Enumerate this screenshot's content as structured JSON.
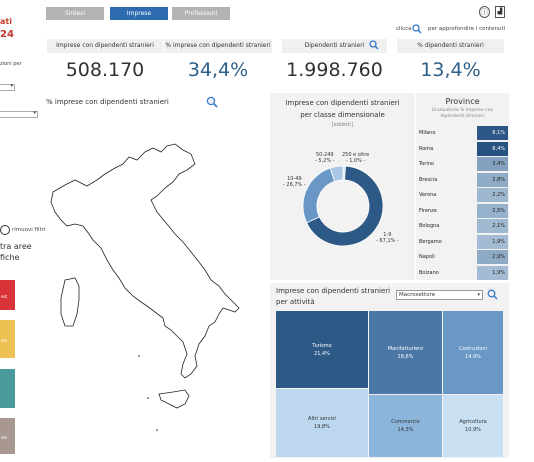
{
  "left": {
    "title_frag1": "ati",
    "title_frag2": "24",
    "filter_hint": "zioni per",
    "remove_filters": "rimuovi filtri",
    "areas_title1": "tra aree",
    "areas_title2": "fiche",
    "swatches": [
      {
        "label": "est",
        "color": "#d9343a"
      },
      {
        "label": "est",
        "color": "#eec153"
      },
      {
        "label": "",
        "color": "#4a9b9b"
      },
      {
        "label": "ole",
        "color": "#a99791"
      }
    ]
  },
  "nav": {
    "tabs": [
      {
        "label": "Sintesi",
        "active": false
      },
      {
        "label": "Imprese",
        "active": true
      },
      {
        "label": "Professioni",
        "active": false
      }
    ],
    "hint_pre": "clicca",
    "hint_post": "per approfondire i contenuti"
  },
  "kpis": [
    {
      "label": "Imprese con dipendenti stranieri",
      "value": "508.170",
      "color": "#333333"
    },
    {
      "label": "% imprese con dipendenti stranieri",
      "value": "34,4%",
      "color": "#2c5f8a"
    },
    {
      "label": "Dipendenti stranieri",
      "value": "1.998.760",
      "color": "#333333"
    },
    {
      "label": "% dipendenti stranieri",
      "value": "13,4%",
      "color": "#2c5f8a"
    }
  ],
  "map": {
    "title": "% imprese con dipendenti stranieri"
  },
  "donut": {
    "title1": "Imprese con dipendenti stranieri",
    "title2": "per classe dimensionale",
    "subtitle": "[addetti]",
    "labels": [
      {
        "name": "50-249",
        "pct": "- 5,2% -"
      },
      {
        "name": "250 e oltre",
        "pct": "- 1,0% -"
      },
      {
        "name": "10-49",
        "pct": "- 26,7% -"
      },
      {
        "name": "1-9",
        "pct": "- 67,1% -"
      }
    ]
  },
  "province": {
    "title": "Province",
    "subtitle1": "Graduatoria % imprese con",
    "subtitle2": "dipendenti stranieri",
    "rows": [
      {
        "name": "Milano",
        "value": "8,1%",
        "v": 8.1
      },
      {
        "name": "Roma",
        "value": "8,4%",
        "v": 8.4
      },
      {
        "name": "Torino",
        "value": "3,4%",
        "v": 3.4
      },
      {
        "name": "Brescia",
        "value": "2,8%",
        "v": 2.8
      },
      {
        "name": "Verona",
        "value": "2,2%",
        "v": 2.2
      },
      {
        "name": "Firenze",
        "value": "2,5%",
        "v": 2.5
      },
      {
        "name": "Bologna",
        "value": "2,1%",
        "v": 2.1
      },
      {
        "name": "Bergamo",
        "value": "1,9%",
        "v": 1.9
      },
      {
        "name": "Napoli",
        "value": "2,9%",
        "v": 2.9
      },
      {
        "name": "Bolzano",
        "value": "1,9%",
        "v": 1.9
      }
    ]
  },
  "treemap": {
    "title1": "Imprese con dipendenti stranieri",
    "title2": "per attività",
    "select_value": "Macrosettore",
    "cells": [
      {
        "name": "Turismo",
        "value": "21,4%",
        "color": "#2d5986",
        "text": "#ffffff"
      },
      {
        "name": "Manifatturiero",
        "value": "18,6%",
        "color": "#4a77a5",
        "text": "#ffffff"
      },
      {
        "name": "Costruzioni",
        "value": "14,9%",
        "color": "#6a98c6",
        "text": "#ffffff"
      },
      {
        "name": "Altri servizi",
        "value": "19,8%",
        "color": "#bdd8ee",
        "text": "#333333"
      },
      {
        "name": "Commercio",
        "value": "14,3%",
        "color": "#8bb5da",
        "text": "#333333"
      },
      {
        "name": "Agricoltura",
        "value": "10,9%",
        "color": "#c9e0f2",
        "text": "#333333"
      }
    ]
  },
  "chart_data": [
    {
      "type": "pie",
      "title": "Imprese con dipendenti stranieri per classe dimensionale",
      "categories": [
        "1-9",
        "10-49",
        "50-249",
        "250 e oltre"
      ],
      "values": [
        67.1,
        26.7,
        5.2,
        1.0
      ]
    },
    {
      "type": "bar",
      "title": "Province",
      "categories": [
        "Milano",
        "Roma",
        "Torino",
        "Brescia",
        "Verona",
        "Firenze",
        "Bologna",
        "Bergamo",
        "Napoli",
        "Bolzano"
      ],
      "values": [
        8.1,
        8.4,
        3.4,
        2.8,
        2.2,
        2.5,
        2.1,
        1.9,
        2.9,
        1.9
      ]
    },
    {
      "type": "heatmap",
      "title": "Imprese con dipendenti stranieri per attività",
      "categories": [
        "Turismo",
        "Manifatturiero",
        "Costruzioni",
        "Altri servizi",
        "Commercio",
        "Agricoltura"
      ],
      "values": [
        21.4,
        18.6,
        14.9,
        19.8,
        14.3,
        10.9
      ]
    }
  ]
}
